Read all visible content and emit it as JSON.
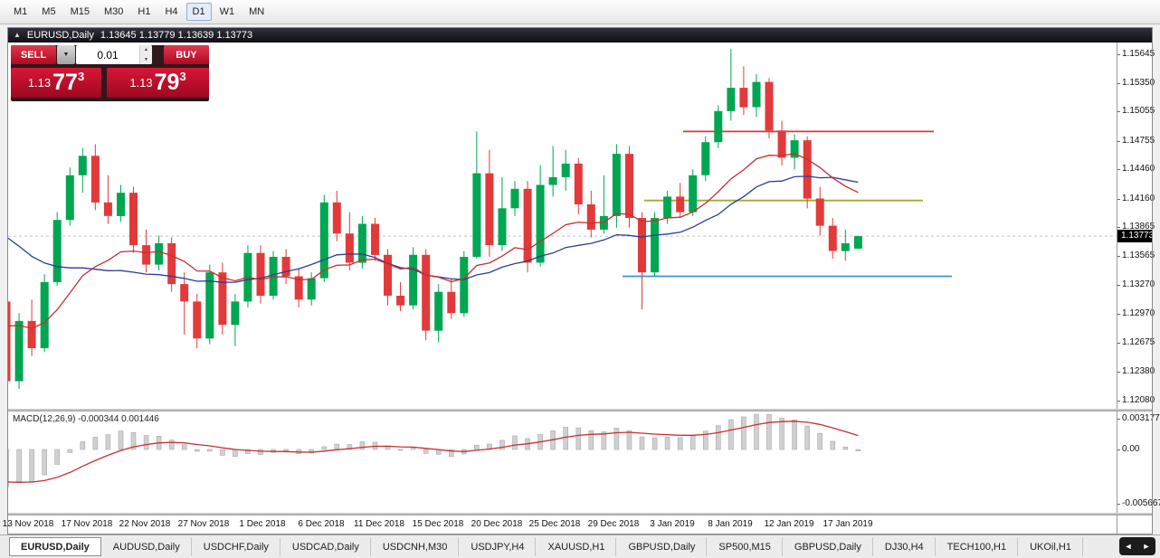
{
  "toolbar": {
    "timeframes": [
      "M1",
      "M5",
      "M15",
      "M30",
      "H1",
      "H4",
      "D1",
      "W1",
      "MN"
    ],
    "active_timeframe": "D1"
  },
  "chart_window": {
    "title": "EURUSD,Daily",
    "ohlc": "1.13645 1.13779 1.13639 1.13773"
  },
  "icons": {
    "window": "▲",
    "dropdown": "▼",
    "spin_up": "▲",
    "spin_down": "▼",
    "scroll_left": "◄",
    "scroll_right": "►"
  },
  "trade_panel": {
    "sell_label": "SELL",
    "buy_label": "BUY",
    "lot_size": "0.01",
    "sell_price": {
      "prefix": "1.13",
      "big": "77",
      "sup": "3"
    },
    "buy_price": {
      "prefix": "1.13",
      "big": "79",
      "sup": "3"
    }
  },
  "current_price_tag": "1.13773",
  "macd_label": "MACD(12,26,9) -0.000344 0.001446",
  "chart_data": {
    "type": "candlestick",
    "symbol": "EURUSD",
    "period": "Daily",
    "current_bar": {
      "open": 1.13645,
      "high": 1.13779,
      "low": 1.13639,
      "close": 1.13773
    },
    "y_axis_labels": [
      "1.15645",
      "1.15350",
      "1.15055",
      "1.14755",
      "1.14460",
      "1.14160",
      "1.13865",
      "1.13565",
      "1.13270",
      "1.12970",
      "1.12675",
      "1.12380",
      "1.12080"
    ],
    "x_axis_labels": [
      "13 Nov 2018",
      "17 Nov 2018",
      "22 Nov 2018",
      "27 Nov 2018",
      "1 Dec 2018",
      "6 Dec 2018",
      "11 Dec 2018",
      "15 Dec 2018",
      "20 Dec 2018",
      "25 Dec 2018",
      "29 Dec 2018",
      "3 Jan 2019",
      "8 Jan 2019",
      "12 Jan 2019",
      "17 Jan 2019"
    ],
    "candles_ohlc": [
      [
        1.131,
        1.1316,
        1.1216,
        1.1228
      ],
      [
        1.1228,
        1.1298,
        1.122,
        1.129
      ],
      [
        1.129,
        1.1312,
        1.1254,
        1.1262
      ],
      [
        1.1262,
        1.1338,
        1.1258,
        1.133
      ],
      [
        1.133,
        1.1402,
        1.1326,
        1.1394
      ],
      [
        1.1394,
        1.1448,
        1.1388,
        1.144
      ],
      [
        1.144,
        1.1468,
        1.1422,
        1.146
      ],
      [
        1.146,
        1.1472,
        1.1404,
        1.1412
      ],
      [
        1.1412,
        1.144,
        1.139,
        1.1398
      ],
      [
        1.1398,
        1.143,
        1.1392,
        1.1422
      ],
      [
        1.1422,
        1.1428,
        1.136,
        1.1368
      ],
      [
        1.1368,
        1.1384,
        1.134,
        1.1348
      ],
      [
        1.1348,
        1.1378,
        1.1342,
        1.137
      ],
      [
        1.137,
        1.1376,
        1.132,
        1.1328
      ],
      [
        1.1328,
        1.134,
        1.1276,
        1.131
      ],
      [
        1.131,
        1.1318,
        1.1262,
        1.1272
      ],
      [
        1.1272,
        1.1348,
        1.1266,
        1.134
      ],
      [
        1.134,
        1.135,
        1.1276,
        1.1286
      ],
      [
        1.1286,
        1.1318,
        1.1264,
        1.131
      ],
      [
        1.131,
        1.1368,
        1.1304,
        1.136
      ],
      [
        1.136,
        1.1368,
        1.1308,
        1.1316
      ],
      [
        1.1316,
        1.1362,
        1.1312,
        1.1356
      ],
      [
        1.1356,
        1.1364,
        1.1328,
        1.1336
      ],
      [
        1.1336,
        1.1344,
        1.1304,
        1.1312
      ],
      [
        1.1312,
        1.134,
        1.1306,
        1.1334
      ],
      [
        1.1334,
        1.142,
        1.133,
        1.1412
      ],
      [
        1.1412,
        1.1424,
        1.1372,
        1.138
      ],
      [
        1.138,
        1.1402,
        1.1342,
        1.135
      ],
      [
        1.135,
        1.1398,
        1.1344,
        1.139
      ],
      [
        1.139,
        1.1396,
        1.1352,
        1.1358
      ],
      [
        1.1358,
        1.1364,
        1.1306,
        1.1316
      ],
      [
        1.1316,
        1.133,
        1.13,
        1.1306
      ],
      [
        1.1306,
        1.1366,
        1.1302,
        1.1358
      ],
      [
        1.1358,
        1.1364,
        1.127,
        1.128
      ],
      [
        1.128,
        1.1328,
        1.1268,
        1.132
      ],
      [
        1.132,
        1.1334,
        1.1292,
        1.1298
      ],
      [
        1.1298,
        1.1362,
        1.1294,
        1.1356
      ],
      [
        1.1356,
        1.1485,
        1.1354,
        1.1442
      ],
      [
        1.1442,
        1.1466,
        1.1356,
        1.1368
      ],
      [
        1.1368,
        1.1438,
        1.1362,
        1.1406
      ],
      [
        1.1406,
        1.1434,
        1.1398,
        1.1426
      ],
      [
        1.1426,
        1.1434,
        1.134,
        1.135
      ],
      [
        1.135,
        1.145,
        1.1346,
        1.143
      ],
      [
        1.143,
        1.147,
        1.1418,
        1.1438
      ],
      [
        1.1438,
        1.1466,
        1.1424,
        1.1452
      ],
      [
        1.1452,
        1.1458,
        1.14,
        1.141
      ],
      [
        1.141,
        1.1424,
        1.1376,
        1.1384
      ],
      [
        1.1384,
        1.144,
        1.138,
        1.1398
      ],
      [
        1.1398,
        1.1472,
        1.1386,
        1.1462
      ],
      [
        1.1462,
        1.147,
        1.1386,
        1.1396
      ],
      [
        1.1396,
        1.1402,
        1.1302,
        1.134
      ],
      [
        1.134,
        1.1402,
        1.1336,
        1.1396
      ],
      [
        1.1396,
        1.1424,
        1.139,
        1.1418
      ],
      [
        1.1418,
        1.1432,
        1.1396,
        1.1402
      ],
      [
        1.1402,
        1.1446,
        1.1398,
        1.144
      ],
      [
        1.144,
        1.148,
        1.1434,
        1.1474
      ],
      [
        1.1474,
        1.1512,
        1.1468,
        1.1506
      ],
      [
        1.1506,
        1.157,
        1.1496,
        1.153
      ],
      [
        1.153,
        1.1552,
        1.1502,
        1.151
      ],
      [
        1.151,
        1.1544,
        1.15,
        1.1536
      ],
      [
        1.1536,
        1.154,
        1.1478,
        1.1486
      ],
      [
        1.1486,
        1.1496,
        1.145,
        1.1458
      ],
      [
        1.1458,
        1.1482,
        1.1446,
        1.1476
      ],
      [
        1.1476,
        1.148,
        1.1406,
        1.1416
      ],
      [
        1.1416,
        1.1428,
        1.1378,
        1.1388
      ],
      [
        1.1388,
        1.1396,
        1.1354,
        1.1362
      ],
      [
        1.1362,
        1.1384,
        1.1352,
        1.137
      ],
      [
        1.13645,
        1.13779,
        1.13639,
        1.13773
      ]
    ],
    "horizontal_lines": [
      {
        "name": "resistance-line",
        "price": 1.1485,
        "color": "#d23b3b"
      },
      {
        "name": "pivot-line",
        "price": 1.1414,
        "color": "#a3ab31"
      },
      {
        "name": "support-line",
        "price": 1.1336,
        "color": "#3f93d6"
      }
    ],
    "ma_colors": {
      "fast": "#c62f2f",
      "slow": "#2b3d91"
    },
    "candle_colors": {
      "up": "#00a651",
      "down": "#e23a3a"
    },
    "macd": {
      "label_values": {
        "main": -0.000344,
        "signal": 0.001446
      },
      "axis_labels": [
        "0.003177",
        "0.00",
        "-0.005667"
      ],
      "axis_values": [
        0.003177,
        0,
        -0.005667
      ],
      "histogram_color": "#d0d0d0",
      "signal_color": "#c62f2f"
    }
  },
  "tabs": {
    "items": [
      "EURUSD,Daily",
      "AUDUSD,Daily",
      "USDCHF,Daily",
      "USDCAD,Daily",
      "USDCNH,M30",
      "USDJPY,H4",
      "XAUUSD,H1",
      "GBPUSD,Daily",
      "SP500,M15",
      "GBPUSD,Daily",
      "DJ30,H4",
      "TECH100,H1",
      "UKOil,H1"
    ],
    "active_index": 0
  }
}
